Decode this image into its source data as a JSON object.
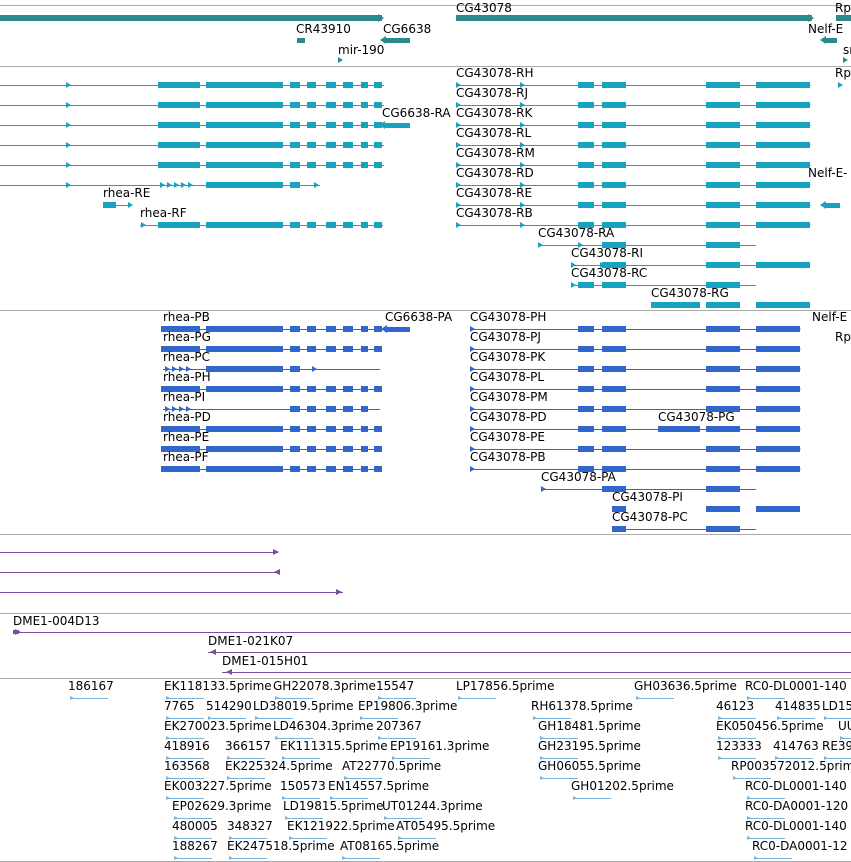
{
  "colors": {
    "gene": "#2a8a8c",
    "transcript": "#17a3c0",
    "protein": "#3366cc",
    "purple": "#7a4fa3",
    "est": "#78b4dc",
    "separator": "#aaaaaa"
  },
  "tracks": {
    "genes": {
      "labels": [
        "CR43910",
        "CG6638",
        "CG43078",
        "Rp",
        "Nelf-E",
        "mir-190",
        "sr"
      ]
    },
    "transcripts": {
      "labels": [
        "CG43078-RH",
        "CG43078-RJ",
        "CG43078-RK",
        "CG43078-RL",
        "CG43078-RM",
        "CG43078-RD",
        "CG43078-RE",
        "CG43078-RB",
        "CG43078-RA",
        "CG43078-RI",
        "CG43078-RC",
        "CG43078-RG",
        "CG6638-RA",
        "rhea-RE",
        "rhea-RF",
        "Rp",
        "Nelf-E-"
      ]
    },
    "proteins": {
      "labels": [
        "rhea-PB",
        "rhea-PG",
        "rhea-PC",
        "rhea-PH",
        "rhea-PI",
        "rhea-PD",
        "rhea-PE",
        "rhea-PF",
        "CG6638-PA",
        "CG43078-PH",
        "CG43078-PJ",
        "CG43078-PK",
        "CG43078-PL",
        "CG43078-PM",
        "CG43078-PD",
        "CG43078-PG",
        "CG43078-PE",
        "CG43078-PB",
        "CG43078-PA",
        "CG43078-PI",
        "CG43078-PC",
        "Nelf-E",
        "Rp"
      ]
    },
    "clones": {
      "labels": [
        "DME1-004D13",
        "DME1-021K07",
        "DME1-015H01"
      ]
    },
    "ests": {
      "labels": [
        "186167",
        "EK118133.5prime",
        "GH22078.3prime",
        "15547",
        "LP17856.5prime",
        "GH03636.5prime",
        "RC0-DL0001-140",
        "7765",
        "514290",
        "LD38019.5prime",
        "EP19806.3prime",
        "RH61378.5prime",
        "46123",
        "414835",
        "LD15",
        "EK270023.5prime",
        "LD46304.3prime",
        "207367",
        "GH18481.5prime",
        "EK050456.5prime",
        "UUG",
        "418916",
        "366157",
        "EK111315.5prime",
        "EP19161.3prime",
        "GH23195.5prime",
        "123333",
        "414763",
        "RE39",
        "163568",
        "EK225324.5prime",
        "AT22770.5prime",
        "GH06055.5prime",
        "RP003572012.5prime",
        "EK003227.5prime",
        "150573",
        "EN14557.5prime",
        "GH01202.5prime",
        "RC0-DL0001-140",
        "EP02629.3prime",
        "LD19815.5prime",
        "UT01244.3prime",
        "RC0-DA0001-120",
        "480005",
        "348327",
        "EK121922.5prime",
        "AT05495.5prime",
        "RC0-DL0001-140",
        "188267",
        "EK247518.5prime",
        "AT08165.5prime",
        "RC0-DA0001-12"
      ]
    }
  }
}
